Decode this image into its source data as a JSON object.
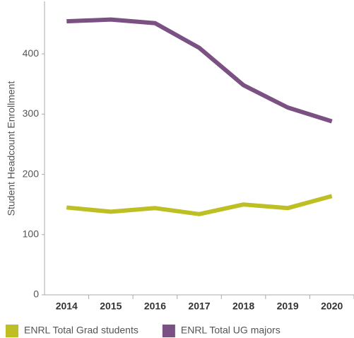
{
  "chart_data": {
    "type": "line",
    "y_label": "Student Headcount Enrollment",
    "categories": [
      "2014",
      "2015",
      "2016",
      "2017",
      "2018",
      "2019",
      "2020"
    ],
    "series": [
      {
        "name": "ENRL Total Grad students",
        "color": "#bdbf24",
        "values": [
          145,
          138,
          144,
          134,
          150,
          144,
          164
        ]
      },
      {
        "name": "ENRL Total UG majors",
        "color": "#7b5082",
        "values": [
          454,
          457,
          451,
          410,
          348,
          311,
          288
        ]
      }
    ],
    "ylim": [
      0,
      480
    ],
    "yticks": [
      0,
      100,
      200,
      300,
      400
    ]
  }
}
